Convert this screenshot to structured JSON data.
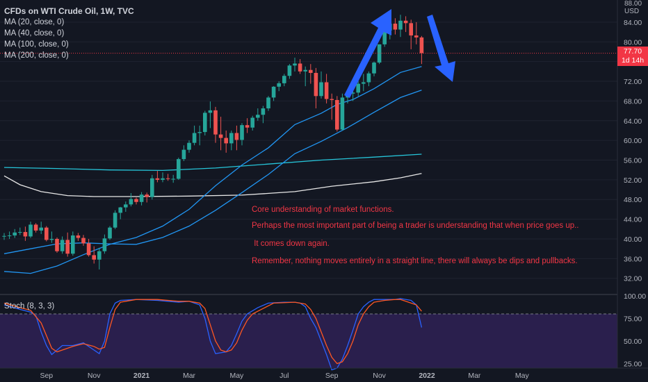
{
  "legend": {
    "title": "CFDs on WTI Crude Oil, 1W, TVC",
    "indicators": [
      "MA (20, close, 0)",
      "MA (40, close, 0)",
      "MA (100, close, 0)",
      "MA (200, close, 0)"
    ]
  },
  "stoch_label": "Stoch (8, 3, 3)",
  "notes": [
    "Core understanding of market functions.",
    "Perhaps the most important part of being a trader is understanding that when price goes up..",
    " It comes down again.",
    "Remember, nothing moves entirely in a straight line, there will always be dips and pullbacks."
  ],
  "price_axis": {
    "unit_top": "88.00",
    "unit": "USD",
    "current_price": "77.70",
    "countdown": "1d 14h"
  },
  "colors": {
    "background": "#131722",
    "up": "#26a69a",
    "down": "#ef5350",
    "ma20": "#2196f3",
    "ma40": "#2196f3",
    "ma100": "#26c6da",
    "ma200": "#e8e8e8",
    "stoch_k": "#2962ff",
    "stoch_d": "#ff5722",
    "arrows": "#2962ff",
    "notes": "#f23645"
  },
  "chart_data": {
    "type": "candlestick",
    "timeframe": "1W",
    "x_tick_labels": [
      "Sep",
      "Nov",
      "2021",
      "Mar",
      "May",
      "Jul",
      "Sep",
      "Nov",
      "2022",
      "Mar",
      "May"
    ],
    "y_ticks": [
      32.0,
      36.0,
      40.0,
      44.0,
      48.0,
      52.0,
      56.0,
      60.0,
      64.0,
      68.0,
      72.0,
      76.0,
      80.0,
      84.0
    ],
    "y_tick_labels": [
      "32.00",
      "36.00",
      "40.00",
      "44.00",
      "48.00",
      "52.00",
      "56.00",
      "60.00",
      "64.00",
      "68.00",
      "72.00",
      "",
      "80.00",
      "84.00"
    ],
    "ylim": [
      29.0,
      88.5
    ],
    "last_price": 77.7,
    "candles": [
      [
        40.5,
        41.2,
        39.8,
        40.6
      ],
      [
        40.6,
        41.5,
        40.0,
        40.7
      ],
      [
        40.7,
        42.0,
        40.2,
        41.3
      ],
      [
        41.3,
        42.3,
        40.8,
        41.4
      ],
      [
        41.4,
        42.5,
        39.6,
        40.5
      ],
      [
        40.5,
        43.5,
        40.2,
        42.9
      ],
      [
        42.9,
        43.2,
        41.3,
        41.7
      ],
      [
        41.7,
        43.5,
        41.0,
        42.3
      ],
      [
        42.3,
        42.6,
        39.5,
        39.8
      ],
      [
        39.8,
        41.5,
        39.2,
        40.0
      ],
      [
        40.0,
        40.3,
        37.2,
        37.5
      ],
      [
        37.5,
        40.5,
        37.0,
        39.8
      ],
      [
        39.8,
        41.3,
        36.4,
        37.0
      ],
      [
        37.0,
        41.5,
        36.6,
        40.7
      ],
      [
        40.7,
        41.2,
        39.6,
        40.2
      ],
      [
        40.2,
        40.8,
        38.6,
        39.1
      ],
      [
        39.1,
        40.0,
        36.4,
        36.7
      ],
      [
        36.7,
        38.5,
        35.0,
        35.8
      ],
      [
        35.8,
        38.2,
        33.8,
        37.5
      ],
      [
        37.5,
        40.9,
        37.0,
        40.1
      ],
      [
        40.1,
        42.6,
        39.8,
        42.3
      ],
      [
        42.3,
        45.8,
        42.0,
        45.3
      ],
      [
        45.3,
        46.5,
        44.0,
        46.4
      ],
      [
        46.4,
        47.6,
        45.5,
        47.0
      ],
      [
        47.0,
        49.3,
        46.6,
        48.1
      ],
      [
        48.1,
        48.4,
        47.0,
        47.5
      ],
      [
        47.5,
        49.5,
        46.8,
        49.0
      ],
      [
        49.0,
        49.4,
        47.4,
        48.5
      ],
      [
        48.5,
        53.0,
        48.0,
        52.3
      ],
      [
        52.3,
        53.8,
        51.5,
        52.0
      ],
      [
        52.0,
        53.5,
        51.5,
        52.3
      ],
      [
        52.3,
        53.2,
        51.8,
        52.2
      ],
      [
        52.2,
        53.0,
        51.4,
        52.2
      ],
      [
        52.2,
        56.5,
        52.0,
        56.2
      ],
      [
        56.2,
        59.0,
        55.8,
        58.1
      ],
      [
        58.1,
        60.0,
        57.5,
        59.5
      ],
      [
        59.5,
        63.0,
        59.0,
        61.5
      ],
      [
        61.5,
        63.0,
        59.0,
        61.7
      ],
      [
        61.7,
        66.0,
        61.0,
        65.6
      ],
      [
        65.6,
        67.9,
        62.5,
        66.1
      ],
      [
        66.1,
        66.8,
        59.5,
        61.2
      ],
      [
        61.2,
        64.8,
        58.0,
        60.5
      ],
      [
        60.5,
        62.0,
        57.5,
        59.4
      ],
      [
        59.4,
        62.0,
        58.0,
        61.5
      ],
      [
        61.5,
        63.0,
        58.0,
        60.1
      ],
      [
        60.1,
        63.5,
        59.0,
        63.1
      ],
      [
        63.1,
        64.5,
        61.5,
        62.6
      ],
      [
        62.6,
        65.0,
        62.0,
        64.6
      ],
      [
        64.6,
        66.5,
        64.0,
        65.2
      ],
      [
        65.2,
        67.0,
        63.5,
        66.5
      ],
      [
        66.5,
        69.0,
        66.0,
        68.7
      ],
      [
        68.7,
        71.0,
        68.0,
        70.9
      ],
      [
        70.9,
        72.0,
        70.0,
        71.6
      ],
      [
        71.6,
        73.5,
        71.0,
        73.1
      ],
      [
        73.1,
        75.5,
        72.5,
        75.2
      ],
      [
        75.2,
        76.8,
        74.0,
        75.6
      ],
      [
        75.6,
        76.5,
        73.5,
        74.0
      ],
      [
        74.0,
        75.0,
        71.0,
        74.3
      ],
      [
        74.3,
        75.5,
        71.5,
        73.7
      ],
      [
        73.7,
        74.7,
        66.5,
        69.0
      ],
      [
        69.0,
        74.0,
        68.5,
        71.8
      ],
      [
        71.8,
        73.5,
        67.5,
        68.4
      ],
      [
        68.4,
        69.5,
        64.2,
        68.2
      ],
      [
        68.2,
        69.0,
        61.8,
        62.2
      ],
      [
        62.2,
        69.5,
        62.0,
        68.7
      ],
      [
        68.7,
        70.0,
        67.5,
        69.5
      ],
      [
        69.5,
        70.5,
        68.0,
        69.7
      ],
      [
        69.7,
        72.0,
        69.0,
        71.5
      ],
      [
        71.5,
        73.5,
        70.0,
        71.8
      ],
      [
        71.8,
        74.0,
        71.0,
        73.6
      ],
      [
        73.6,
        76.0,
        73.0,
        75.8
      ],
      [
        75.8,
        79.5,
        75.5,
        79.5
      ],
      [
        79.5,
        82.5,
        79.0,
        82.3
      ],
      [
        82.3,
        83.5,
        80.5,
        83.7
      ],
      [
        83.7,
        84.8,
        81.5,
        82.5
      ],
      [
        82.5,
        85.5,
        81.0,
        84.3
      ],
      [
        84.3,
        85.2,
        82.0,
        83.8
      ],
      [
        83.8,
        84.5,
        78.5,
        81.3
      ],
      [
        81.3,
        84.0,
        79.5,
        80.9
      ],
      [
        80.9,
        81.2,
        75.5,
        77.7
      ]
    ],
    "ma20": [
      [
        0,
        33.4
      ],
      [
        5,
        33.0
      ],
      [
        10,
        34.5
      ],
      [
        15,
        36.8
      ],
      [
        20,
        38.9
      ],
      [
        25,
        40.3
      ],
      [
        30,
        42.6
      ],
      [
        35,
        46.0
      ],
      [
        40,
        50.8
      ],
      [
        45,
        55.0
      ],
      [
        50,
        58.5
      ],
      [
        55,
        63.2
      ],
      [
        60,
        65.5
      ],
      [
        63,
        67.3
      ],
      [
        66,
        68.3
      ],
      [
        70,
        70.5
      ],
      [
        75,
        73.8
      ],
      [
        79,
        75.0
      ]
    ],
    "ma40": [
      [
        0,
        37.0
      ],
      [
        5,
        38.0
      ],
      [
        10,
        39.0
      ],
      [
        15,
        39.2
      ],
      [
        20,
        39.0
      ],
      [
        25,
        38.9
      ],
      [
        30,
        40.3
      ],
      [
        35,
        42.6
      ],
      [
        40,
        45.8
      ],
      [
        45,
        49.4
      ],
      [
        50,
        53.1
      ],
      [
        55,
        57.3
      ],
      [
        60,
        59.8
      ],
      [
        65,
        62.6
      ],
      [
        70,
        65.7
      ],
      [
        75,
        68.7
      ],
      [
        79,
        70.2
      ]
    ],
    "ma100": [
      [
        0,
        54.5
      ],
      [
        10,
        54.3
      ],
      [
        20,
        54.0
      ],
      [
        30,
        53.9
      ],
      [
        40,
        54.4
      ],
      [
        50,
        55.2
      ],
      [
        60,
        56.0
      ],
      [
        70,
        56.6
      ],
      [
        79,
        57.2
      ]
    ],
    "ma200": [
      [
        0,
        52.8
      ],
      [
        3,
        51.0
      ],
      [
        7,
        49.6
      ],
      [
        12,
        48.8
      ],
      [
        17,
        48.6
      ],
      [
        25,
        48.6
      ],
      [
        35,
        48.7
      ],
      [
        45,
        48.9
      ],
      [
        55,
        49.6
      ],
      [
        62,
        50.7
      ],
      [
        70,
        51.6
      ],
      [
        75,
        52.4
      ],
      [
        79,
        53.3
      ]
    ],
    "stochastic": {
      "label": "Stoch (8, 3, 3)",
      "ylim": [
        20,
        100
      ],
      "y_tick_labels": [
        "100.00",
        "75.00",
        "50.00",
        "25.00"
      ],
      "overbought": 80,
      "oversold": 20,
      "k": [
        [
          0,
          90
        ],
        [
          3,
          85
        ],
        [
          5,
          82
        ],
        [
          6,
          78
        ],
        [
          7,
          60
        ],
        [
          8,
          45
        ],
        [
          9,
          35
        ],
        [
          10,
          40
        ],
        [
          11,
          45
        ],
        [
          13,
          45
        ],
        [
          15,
          48
        ],
        [
          17,
          40
        ],
        [
          18,
          36
        ],
        [
          19,
          50
        ],
        [
          20,
          80
        ],
        [
          21,
          92
        ],
        [
          22,
          95
        ],
        [
          25,
          96
        ],
        [
          29,
          95
        ],
        [
          31,
          94
        ],
        [
          33,
          93
        ],
        [
          35,
          94
        ],
        [
          37,
          90
        ],
        [
          38,
          75
        ],
        [
          39,
          50
        ],
        [
          40,
          36
        ],
        [
          42,
          38
        ],
        [
          43,
          45
        ],
        [
          44,
          58
        ],
        [
          45,
          72
        ],
        [
          46,
          80
        ],
        [
          48,
          87
        ],
        [
          50,
          92
        ],
        [
          53,
          93
        ],
        [
          55,
          93
        ],
        [
          56,
          92
        ],
        [
          57,
          88
        ],
        [
          58,
          75
        ],
        [
          59,
          65
        ],
        [
          60,
          50
        ],
        [
          61,
          35
        ],
        [
          62,
          18
        ],
        [
          63,
          20
        ],
        [
          64,
          30
        ],
        [
          65,
          45
        ],
        [
          66,
          62
        ],
        [
          67,
          80
        ],
        [
          68,
          88
        ],
        [
          69,
          93
        ],
        [
          70,
          96
        ],
        [
          72,
          96
        ],
        [
          74,
          96
        ],
        [
          75,
          97
        ],
        [
          77,
          95
        ],
        [
          78,
          90
        ],
        [
          79,
          65
        ]
      ],
      "d": [
        [
          0,
          92
        ],
        [
          3,
          87
        ],
        [
          5,
          84
        ],
        [
          7,
          70
        ],
        [
          9,
          42
        ],
        [
          10,
          38
        ],
        [
          11,
          40
        ],
        [
          13,
          44
        ],
        [
          15,
          47
        ],
        [
          17,
          44
        ],
        [
          18,
          41
        ],
        [
          19,
          43
        ],
        [
          20,
          65
        ],
        [
          21,
          85
        ],
        [
          22,
          93
        ],
        [
          25,
          96
        ],
        [
          29,
          96
        ],
        [
          33,
          94
        ],
        [
          35,
          94
        ],
        [
          37,
          92
        ],
        [
          38,
          86
        ],
        [
          39,
          68
        ],
        [
          40,
          50
        ],
        [
          41,
          40
        ],
        [
          42,
          38
        ],
        [
          43,
          40
        ],
        [
          44,
          48
        ],
        [
          45,
          62
        ],
        [
          46,
          73
        ],
        [
          47,
          80
        ],
        [
          49,
          86
        ],
        [
          51,
          92
        ],
        [
          55,
          93
        ],
        [
          57,
          91
        ],
        [
          58,
          85
        ],
        [
          59,
          75
        ],
        [
          60,
          60
        ],
        [
          61,
          45
        ],
        [
          62,
          32
        ],
        [
          63,
          25
        ],
        [
          64,
          27
        ],
        [
          65,
          36
        ],
        [
          66,
          50
        ],
        [
          67,
          68
        ],
        [
          68,
          80
        ],
        [
          69,
          88
        ],
        [
          70,
          93
        ],
        [
          72,
          95
        ],
        [
          74,
          96
        ],
        [
          75,
          96
        ],
        [
          76,
          94
        ],
        [
          78,
          90
        ],
        [
          79,
          83
        ]
      ]
    }
  }
}
